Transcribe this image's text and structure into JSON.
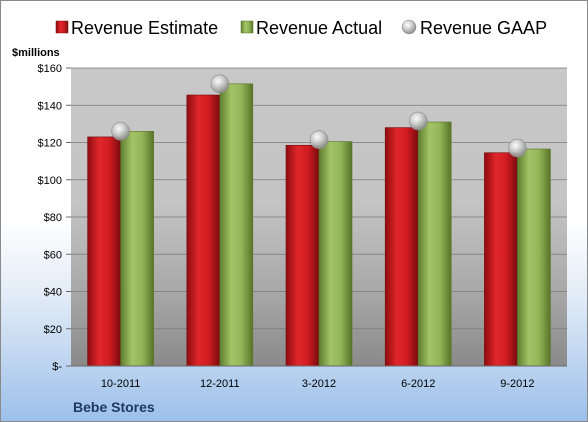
{
  "chart_data": {
    "type": "bar",
    "categories": [
      "10-2011",
      "12-2011",
      "3-2012",
      "6-2012",
      "9-2012"
    ],
    "series": [
      {
        "name": "Revenue Estimate",
        "kind": "bar",
        "color": "#c0161b",
        "values": [
          123,
          145.5,
          118.5,
          128,
          114.5
        ]
      },
      {
        "name": "Revenue Actual",
        "kind": "bar",
        "color": "#8aae4f",
        "values": [
          126,
          151.5,
          120.5,
          131,
          116.5
        ]
      },
      {
        "name": "Revenue GAAP",
        "kind": "marker",
        "color": "#b8b8b8",
        "values": [
          126,
          151.5,
          121.5,
          131.5,
          117
        ]
      }
    ],
    "unit_label": "$millions",
    "ylim": [
      0,
      160
    ],
    "yticks": [
      0,
      20,
      40,
      60,
      80,
      100,
      120,
      140,
      160
    ],
    "ytick_labels": [
      "$-",
      "$20",
      "$40",
      "$60",
      "$80",
      "$100",
      "$120",
      "$140",
      "$160"
    ],
    "legend_position": "top",
    "grid": true
  },
  "footer": {
    "company": "Bebe Stores"
  }
}
